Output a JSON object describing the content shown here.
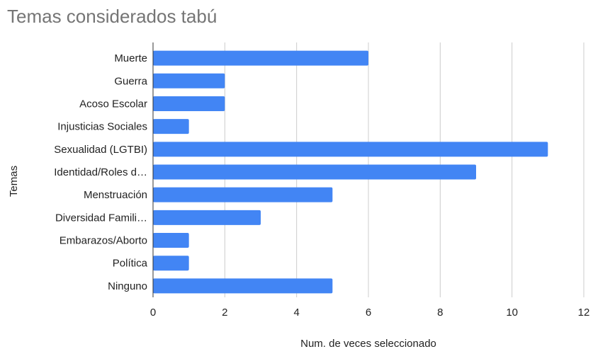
{
  "chart_data": {
    "type": "bar",
    "orientation": "horizontal",
    "title": "Temas considerados tabú",
    "xlabel": "Num. de veces seleccionado",
    "ylabel": "Temas",
    "categories": [
      "Muerte",
      "Guerra",
      "Acoso Escolar",
      "Injusticias Sociales",
      "Sexualidad (LGTBI)",
      "Identidad/Roles d…",
      "Menstruación",
      "Diversidad Famili…",
      "Embarazos/Aborto",
      "Política",
      "Ninguno"
    ],
    "values": [
      6,
      2,
      2,
      1,
      11,
      9,
      5,
      3,
      1,
      1,
      5
    ],
    "xlim": [
      0,
      12
    ],
    "xticks": [
      "0",
      "2",
      "4",
      "6",
      "8",
      "10",
      "12"
    ],
    "grid": true,
    "legend": "none",
    "bar_color": "#4285f4"
  }
}
